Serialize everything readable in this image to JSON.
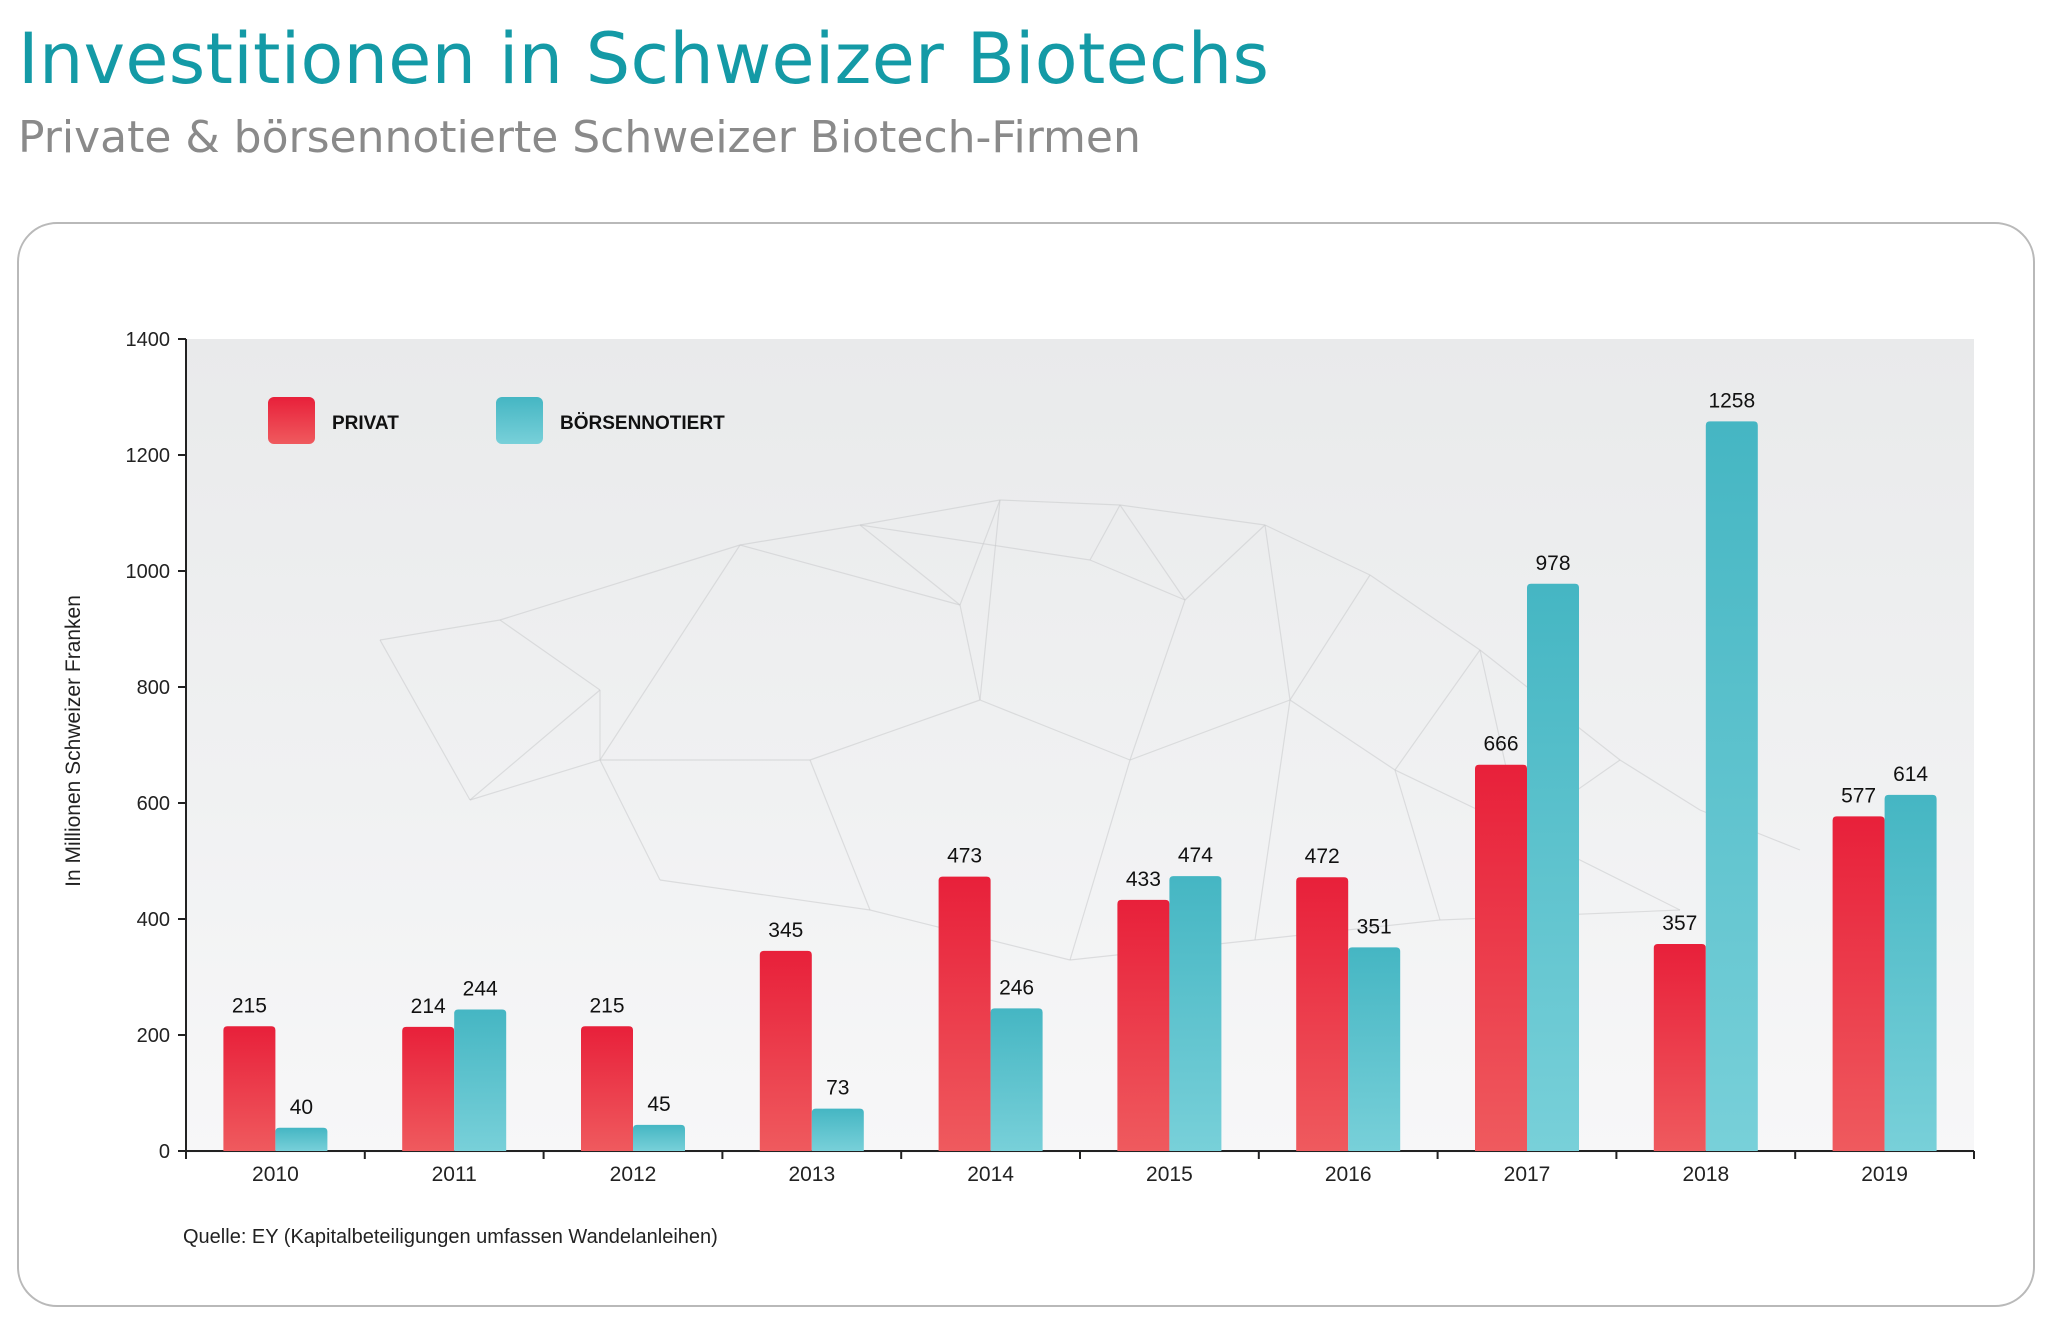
{
  "header": {
    "title": "Investitionen in Schweizer Biotechs",
    "subtitle": "Private & börsennotierte Schweizer Biotech-Firmen"
  },
  "source": "Quelle: EY (Kapitalbeteiligungen umfassen Wandelanleihen)",
  "colors": {
    "privat": "#e8293f",
    "boersennotiert": "#4dbac6"
  },
  "chart_data": {
    "type": "bar",
    "title": "",
    "xlabel": "",
    "ylabel": "In Millionen Schweizer Franken",
    "ylim": [
      0,
      1400
    ],
    "yticks": [
      0,
      200,
      400,
      600,
      800,
      1000,
      1200,
      1400
    ],
    "grid": false,
    "legend_position": "top-left",
    "categories": [
      "2010",
      "2011",
      "2012",
      "2013",
      "2014",
      "2015",
      "2016",
      "2017",
      "2018",
      "2019"
    ],
    "series": [
      {
        "name": "PRIVAT",
        "values": [
          215,
          214,
          215,
          345,
          473,
          433,
          472,
          666,
          357,
          577
        ]
      },
      {
        "name": "BÖRSENNOTIERT",
        "values": [
          40,
          244,
          45,
          73,
          246,
          474,
          351,
          978,
          1258,
          614
        ]
      }
    ]
  }
}
